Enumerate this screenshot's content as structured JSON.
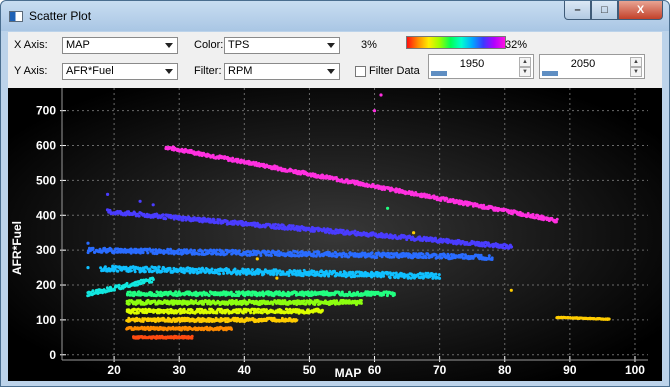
{
  "window": {
    "title": "Scatter Plot",
    "min_glyph": "–",
    "max_glyph": "□",
    "close_glyph": "X"
  },
  "controls": {
    "x_axis": {
      "label": "X Axis:",
      "value": "MAP"
    },
    "y_axis": {
      "label": "Y Axis:",
      "value": "AFR*Fuel"
    },
    "color": {
      "label": "Color:",
      "value": "TPS"
    },
    "filter": {
      "label": "Filter:",
      "value": "RPM"
    },
    "color_scale": {
      "min": "3%",
      "max": "32%"
    },
    "filter_data": {
      "label": "Filter Data",
      "checked": false
    },
    "range_low": "1950",
    "range_high": "2050"
  },
  "colors": {
    "plot_bg": "#000000",
    "grid": "#6a6a6a",
    "axis_text": "#ffffff"
  },
  "chart_data": {
    "type": "scatter",
    "xlabel": "MAP",
    "ylabel": "AFR*Fuel",
    "xlim": [
      12,
      102
    ],
    "ylim": [
      -15,
      765
    ],
    "x_ticks": [
      20,
      30,
      40,
      50,
      60,
      70,
      80,
      90,
      100
    ],
    "y_ticks": [
      0,
      100,
      200,
      300,
      400,
      500,
      600,
      700
    ],
    "grid": true,
    "colorbar": {
      "variable": "TPS",
      "min": 3,
      "max": 32,
      "unit": "%"
    },
    "series": [
      {
        "color": "#ff30e0",
        "bands": [
          [
            28,
            88,
            595,
            385,
            5
          ]
        ],
        "points": [
          [
            61,
            745
          ],
          [
            60,
            700
          ]
        ]
      },
      {
        "color": "#4a3cff",
        "bands": [
          [
            19,
            81,
            410,
            310,
            6
          ]
        ],
        "points": [
          [
            19,
            460
          ],
          [
            24,
            440
          ],
          [
            26,
            430
          ]
        ]
      },
      {
        "color": "#2a6cff",
        "bands": [
          [
            16,
            78,
            300,
            280,
            7
          ]
        ],
        "points": [
          [
            16,
            320
          ]
        ]
      },
      {
        "color": "#10c0ff",
        "bands": [
          [
            18,
            70,
            248,
            225,
            8
          ]
        ],
        "points": [
          [
            16,
            250
          ]
        ]
      },
      {
        "color": "#12e8e0",
        "bands": [
          [
            16,
            26,
            175,
            215,
            6
          ]
        ],
        "points": []
      },
      {
        "color": "#22ff80",
        "bands": [
          [
            22,
            63,
            175,
            175,
            6
          ]
        ],
        "points": [
          [
            62,
            420
          ]
        ]
      },
      {
        "color": "#8cff10",
        "bands": [
          [
            22,
            58,
            150,
            150,
            6
          ]
        ],
        "points": []
      },
      {
        "color": "#dcff00",
        "bands": [
          [
            22,
            52,
            125,
            125,
            6
          ]
        ],
        "points": []
      },
      {
        "color": "#ffcc00",
        "bands": [
          [
            22,
            48,
            100,
            100,
            5
          ],
          [
            88,
            96,
            107,
            102,
            1
          ]
        ],
        "points": [
          [
            81,
            185
          ],
          [
            66,
            350
          ],
          [
            42,
            275
          ],
          [
            45,
            220
          ]
        ]
      },
      {
        "color": "#ff8a00",
        "bands": [
          [
            22,
            38,
            75,
            75,
            4
          ]
        ],
        "points": []
      },
      {
        "color": "#ff4a10",
        "bands": [
          [
            23,
            32,
            50,
            50,
            3
          ]
        ],
        "points": []
      }
    ]
  }
}
